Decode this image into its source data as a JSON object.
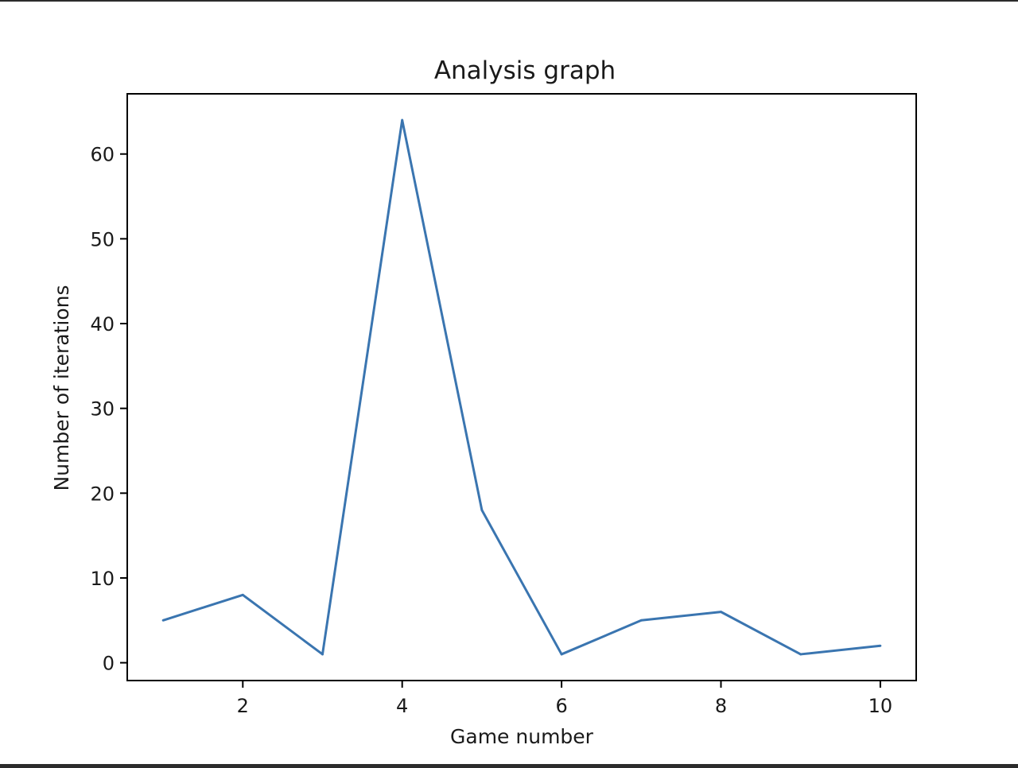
{
  "chart_data": {
    "type": "line",
    "title": "Analysis graph",
    "xlabel": "Game number",
    "ylabel": "Number of iterations",
    "x": [
      1,
      2,
      3,
      4,
      5,
      6,
      7,
      8,
      9,
      10
    ],
    "series": [
      {
        "values": [
          5,
          8,
          1,
          64,
          18,
          1,
          5,
          6,
          1,
          2
        ],
        "color": "#3a75b0"
      }
    ],
    "xlim": [
      0.55,
      10.45
    ],
    "ylim": [
      -2.1,
      67.1
    ],
    "xticks": [
      2,
      4,
      6,
      8,
      10
    ],
    "yticks": [
      0,
      10,
      20,
      30,
      40,
      50,
      60
    ],
    "grid": false,
    "legend": "none"
  }
}
